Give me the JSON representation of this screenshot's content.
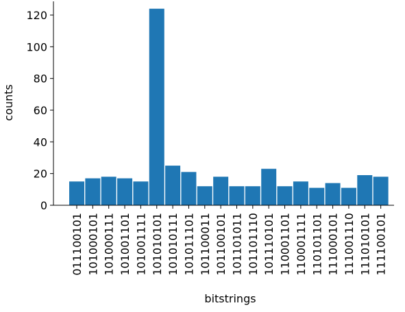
{
  "chart_data": {
    "type": "bar",
    "xlabel": "bitstrings",
    "ylabel": "counts",
    "ylim": [
      0,
      130
    ],
    "yticks": [
      0,
      20,
      40,
      60,
      80,
      100,
      120
    ],
    "categories": [
      "011100101",
      "101000101",
      "101000111",
      "101001101",
      "101001111",
      "101010101",
      "101010111",
      "101011101",
      "101100011",
      "101100101",
      "101101011",
      "101101110",
      "101110101",
      "110001101",
      "110001111",
      "110101101",
      "111000101",
      "111001110",
      "111010101",
      "111100101"
    ],
    "values": [
      15,
      17,
      18,
      17,
      15,
      124,
      25,
      21,
      12,
      18,
      12,
      12,
      23,
      12,
      15,
      11,
      14,
      11,
      19,
      18
    ],
    "bar_color": "#1f77b4",
    "grid": false,
    "spines": "left-bottom"
  }
}
